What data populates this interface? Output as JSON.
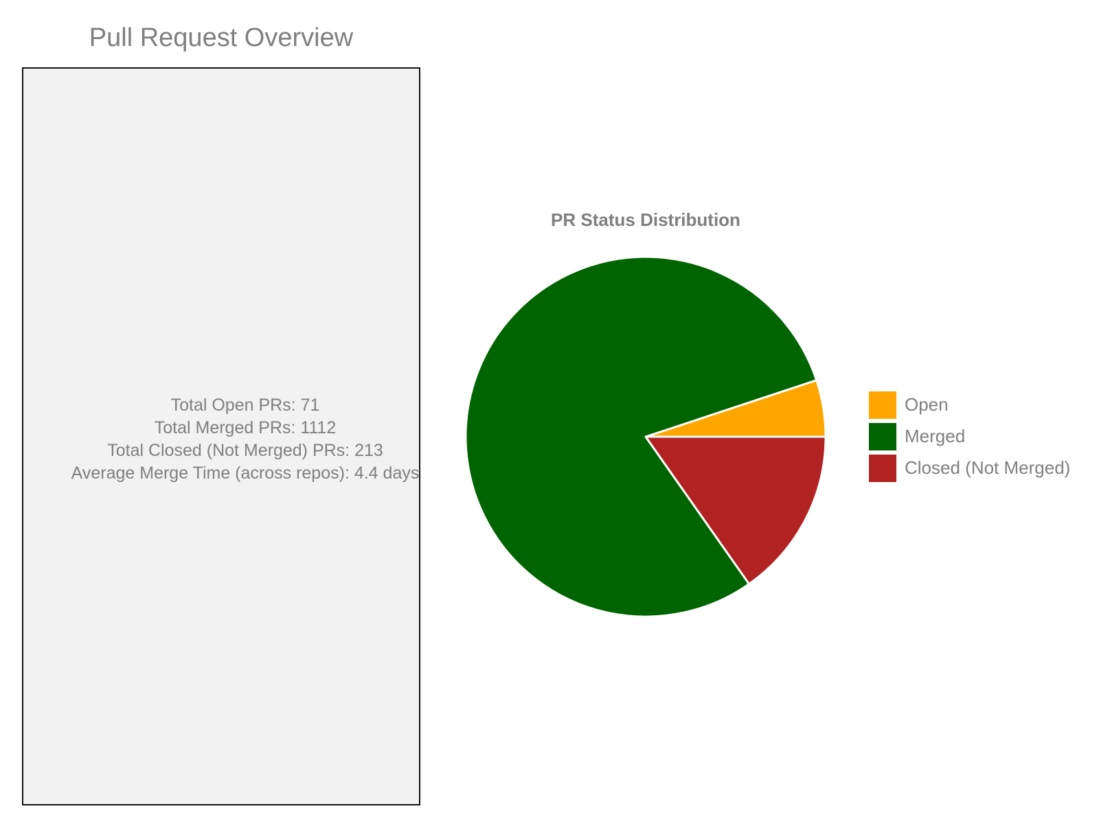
{
  "overview": {
    "title": "Pull Request Overview",
    "lines": [
      "Total Open PRs: 71",
      "Total Merged PRs: 1112",
      "Total Closed (Not Merged) PRs: 213",
      "Average Merge Time (across repos): 4.4 days"
    ]
  },
  "chart_data": {
    "type": "pie",
    "title": "PR Status Distribution",
    "categories": [
      "Open",
      "Merged",
      "Closed (Not Merged)"
    ],
    "values": [
      71,
      1112,
      213
    ],
    "colors": [
      "#ffa500",
      "#006400",
      "#b22222"
    ],
    "slice_edge_color": "#ffffff",
    "start": "3 o'clock",
    "direction": "counterclockwise",
    "legend_position": "right"
  }
}
